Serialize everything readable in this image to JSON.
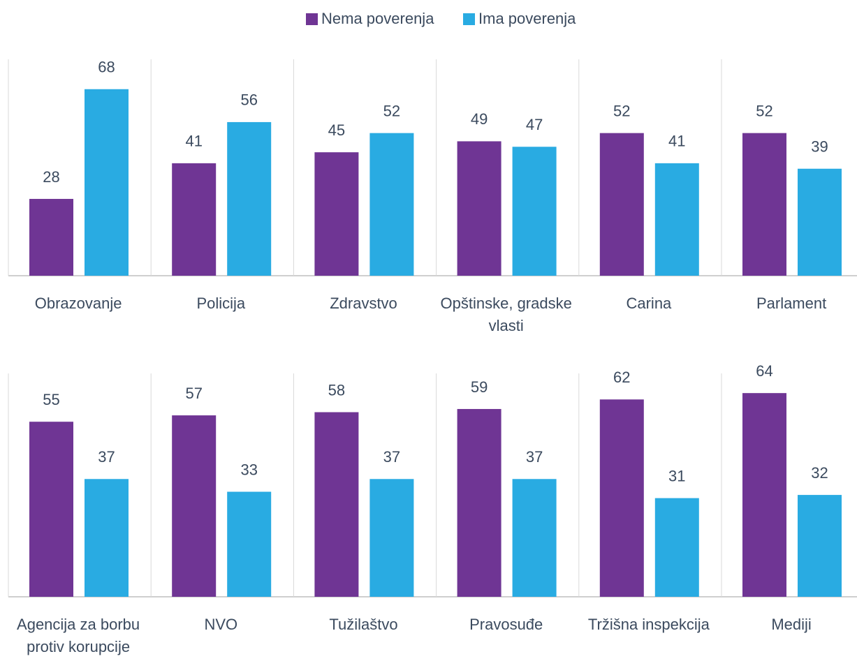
{
  "chart_data": {
    "type": "bar",
    "categories": [
      "Obrazovanje",
      "Policija",
      "Zdravstvo",
      "Opštinske, gradske vlasti",
      "Carina",
      "Parlament",
      "Agencija za borbu protiv korupcije",
      "NVO",
      "Tužilaštvo",
      "Pravosuđe",
      "Tržišna inspekcija",
      "Mediji"
    ],
    "series": [
      {
        "name": "Nema poverenja",
        "color": "#6f3594",
        "values": [
          28,
          41,
          45,
          49,
          52,
          52,
          55,
          57,
          58,
          59,
          62,
          64
        ]
      },
      {
        "name": "Ima poverenja",
        "color": "#29abe2",
        "values": [
          68,
          56,
          52,
          47,
          41,
          39,
          37,
          33,
          37,
          37,
          31,
          32
        ]
      }
    ],
    "legend": "top"
  }
}
